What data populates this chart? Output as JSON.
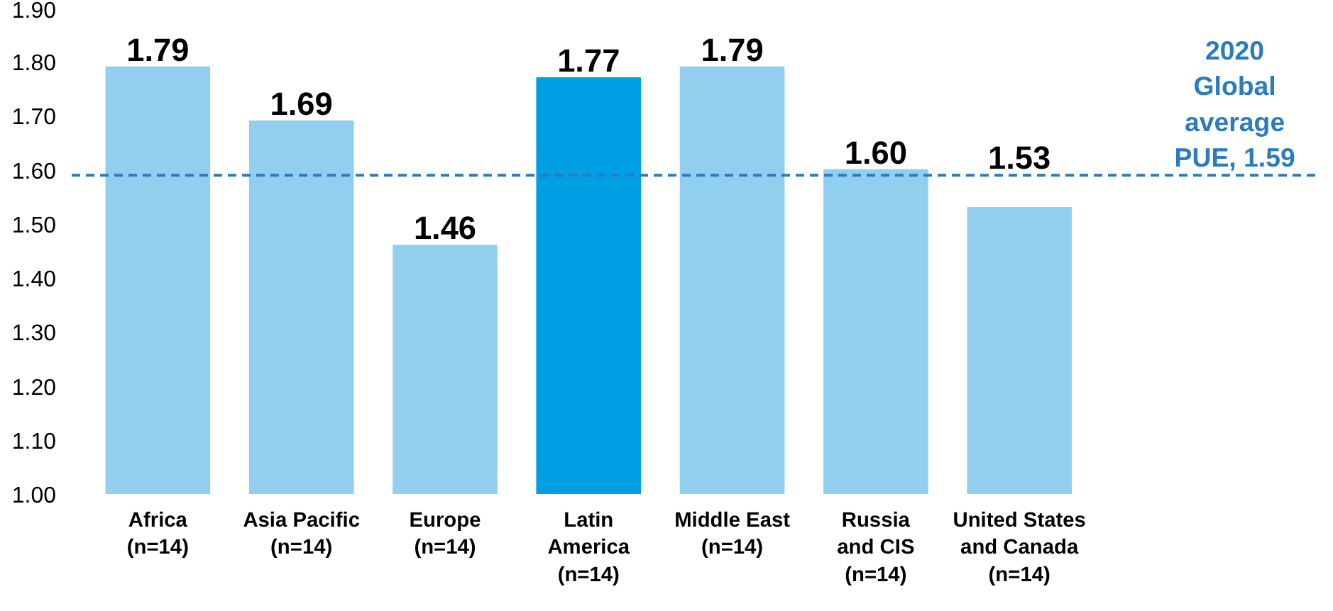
{
  "chart_data": {
    "type": "bar",
    "categories": [
      "Africa\n(n=14)",
      "Asia Pacific\n(n=14)",
      "Europe\n(n=14)",
      "Latin\nAmerica\n(n=14)",
      "Middle East\n(n=14)",
      "Russia\nand CIS\n(n=14)",
      "United States\nand Canada\n(n=14)"
    ],
    "values": [
      1.79,
      1.69,
      1.46,
      1.77,
      1.79,
      1.6,
      1.53
    ],
    "colors": [
      "#92cfee",
      "#92cfee",
      "#92cfee",
      "#009fe3",
      "#92cfee",
      "#92cfee",
      "#92cfee"
    ],
    "ylim": [
      1.0,
      1.9
    ],
    "yticks": [
      {
        "value": 1.0,
        "label": "1.00"
      },
      {
        "value": 1.1,
        "label": "1.10"
      },
      {
        "value": 1.2,
        "label": "1.20"
      },
      {
        "value": 1.3,
        "label": "1.30"
      },
      {
        "value": 1.4,
        "label": "1.40"
      },
      {
        "value": 1.5,
        "label": "1.50"
      },
      {
        "value": 1.6,
        "label": "1.60"
      },
      {
        "value": 1.7,
        "label": "1.70"
      },
      {
        "value": 1.8,
        "label": "1.80"
      },
      {
        "value": 1.9,
        "label": "1.90"
      }
    ],
    "value_labels": [
      "1.79",
      "1.69",
      "1.46",
      "1.77",
      "1.79",
      "1.60",
      "1.53"
    ],
    "grid": false,
    "ref_lines": [
      {
        "axis": "y",
        "value": 1.59,
        "label": "2020\nGlobal\naverage\nPUE, 1.59",
        "color": "#2a7bbf",
        "line_style": "dashed"
      }
    ]
  }
}
